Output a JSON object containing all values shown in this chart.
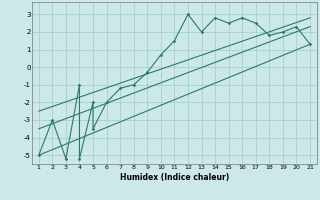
{
  "xlabel": "Humidex (Indice chaleur)",
  "ylabel": "",
  "bg_color": "#cce8e8",
  "grid_color": "#aad4d4",
  "line_color": "#2a7a6a",
  "xlim": [
    0.5,
    21.5
  ],
  "ylim": [
    -5.5,
    3.7
  ],
  "xticks": [
    1,
    2,
    3,
    4,
    5,
    6,
    7,
    8,
    9,
    10,
    11,
    12,
    13,
    14,
    15,
    16,
    17,
    18,
    19,
    20,
    21
  ],
  "yticks": [
    -5,
    -4,
    -3,
    -2,
    -1,
    0,
    1,
    2,
    3
  ],
  "data_x": [
    1,
    2,
    3,
    4,
    4,
    5,
    5,
    6,
    7,
    8,
    9,
    10,
    11,
    12,
    13,
    14,
    15,
    16,
    17,
    18,
    19,
    20,
    21
  ],
  "data_y": [
    -5.0,
    -3.0,
    -5.2,
    -1.0,
    -5.2,
    -2.0,
    -3.5,
    -2.0,
    -1.2,
    -1.0,
    -0.3,
    0.7,
    1.5,
    3.0,
    2.0,
    2.8,
    2.5,
    2.8,
    2.5,
    1.8,
    2.0,
    2.3,
    1.3
  ],
  "line1_x": [
    1,
    21
  ],
  "line1_y": [
    -5.0,
    1.3
  ],
  "line2_x": [
    1,
    21
  ],
  "line2_y": [
    -3.5,
    2.3
  ],
  "line3_x": [
    1,
    21
  ],
  "line3_y": [
    -2.5,
    2.8
  ]
}
